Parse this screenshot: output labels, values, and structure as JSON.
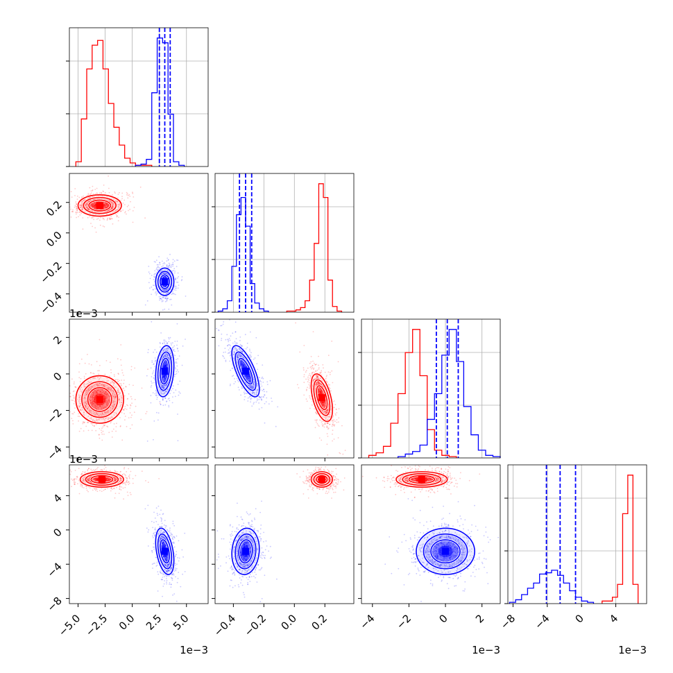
{
  "chart_data": {
    "type": "corner",
    "series": [
      {
        "name": "",
        "color": "#ff0000"
      },
      {
        "name": "",
        "color": "#0000ff"
      }
    ],
    "variables": [
      {
        "range": [
          -5.8,
          7.0
        ],
        "ticks": [
          -5.0,
          -2.5,
          0.0,
          2.5,
          5.0
        ],
        "tick_labels": [
          "−5.0",
          "−2.5",
          "0.0",
          "2.5",
          "5.0"
        ],
        "offset": "1e−3"
      },
      {
        "range": [
          -0.52,
          0.39
        ],
        "ticks": [
          -0.4,
          -0.2,
          0.0,
          0.2
        ],
        "tick_labels": [
          "−0.4",
          "−0.2",
          "0.0",
          "0.2"
        ],
        "offset": ""
      },
      {
        "range": [
          -4.6,
          3.0
        ],
        "ticks": [
          -4,
          -2,
          0,
          2
        ],
        "tick_labels": [
          "−4",
          "−2",
          "0",
          "2"
        ],
        "offset": "1e−3"
      },
      {
        "range": [
          -8.6,
          7.6
        ],
        "ticks": [
          -8,
          -4,
          0,
          4
        ],
        "tick_labels": [
          "−8",
          "−4",
          "0",
          "4"
        ],
        "offset": "1e−3"
      }
    ],
    "marginals": [
      {
        "var": 0,
        "red": {
          "edges": [
            -5.2,
            -4.7,
            -4.2,
            -3.7,
            -3.2,
            -2.7,
            -2.2,
            -1.7,
            -1.2,
            -0.7,
            -0.2,
            0.3,
            0.8,
            1.3,
            1.8
          ],
          "counts": [
            4,
            40,
            82,
            102,
            106,
            82,
            53,
            33,
            18,
            7,
            3,
            1,
            1,
            1
          ]
        },
        "blue": {
          "edges": [
            0.3,
            0.8,
            1.3,
            1.8,
            2.3,
            2.8,
            3.3,
            3.8,
            4.3,
            4.8
          ],
          "counts": [
            1,
            2,
            6,
            62,
            108,
            104,
            44,
            4,
            1
          ]
        },
        "quantile_lines": [
          2.5,
          3.0,
          3.5
        ]
      },
      {
        "var": 1,
        "blue": {
          "edges": [
            -0.5,
            -0.47,
            -0.44,
            -0.41,
            -0.38,
            -0.35,
            -0.32,
            -0.29,
            -0.26,
            -0.23,
            -0.2,
            -0.17
          ],
          "counts": [
            1,
            3,
            10,
            40,
            85,
            100,
            75,
            25,
            8,
            3,
            1
          ]
        },
        "red": {
          "edges": [
            -0.05,
            -0.02,
            0.01,
            0.04,
            0.07,
            0.1,
            0.13,
            0.16,
            0.19,
            0.22,
            0.25,
            0.28,
            0.31
          ],
          "counts": [
            1,
            1,
            2,
            4,
            10,
            28,
            60,
            112,
            100,
            28,
            5,
            1
          ]
        },
        "quantile_lines": [
          -0.36,
          -0.32,
          -0.28
        ]
      },
      {
        "var": 2,
        "red": {
          "edges": [
            -4.2,
            -3.8,
            -3.4,
            -3.0,
            -2.6,
            -2.2,
            -1.8,
            -1.4,
            -1.0,
            -0.6,
            -0.2,
            0.2,
            0.6
          ],
          "counts": [
            2,
            4,
            9,
            27,
            50,
            82,
            100,
            64,
            22,
            6,
            2,
            1
          ]
        },
        "blue": {
          "edges": [
            -2.6,
            -2.2,
            -1.8,
            -1.4,
            -1.0,
            -0.6,
            -0.2,
            0.2,
            0.6,
            1.0,
            1.4,
            1.8,
            2.2,
            2.6,
            3.0
          ],
          "counts": [
            1,
            3,
            5,
            10,
            30,
            50,
            80,
            100,
            75,
            40,
            18,
            6,
            2,
            1
          ]
        },
        "quantile_lines": [
          -0.5,
          0.1,
          0.7
        ]
      },
      {
        "var": 3,
        "blue": {
          "edges": [
            -8.4,
            -7.7,
            -7.0,
            -6.3,
            -5.6,
            -4.9,
            -4.2,
            -3.5,
            -2.8,
            -2.1,
            -1.4,
            -0.7,
            0.0,
            0.7,
            1.4
          ],
          "counts": [
            1,
            3,
            7,
            12,
            16,
            23,
            24,
            26,
            22,
            16,
            10,
            5,
            2,
            1
          ]
        },
        "red": {
          "edges": [
            2.4,
            3.0,
            3.6,
            4.2,
            4.8,
            5.4,
            6.0,
            6.6
          ],
          "counts": [
            2,
            2,
            5,
            15,
            70,
            100,
            15
          ]
        },
        "quantile_lines": [
          -4.1,
          -2.5,
          -0.7
        ]
      }
    ],
    "joints": [
      {
        "xvar": 0,
        "yvar": 1,
        "clusters": [
          {
            "color": "red",
            "mean": [
              -3.0,
              0.18
            ],
            "sd": [
              1.0,
              0.035
            ],
            "rho": 0.0
          },
          {
            "color": "blue",
            "mean": [
              3.0,
              -0.32
            ],
            "sd": [
              0.42,
              0.045
            ],
            "rho": 0.0
          }
        ]
      },
      {
        "xvar": 0,
        "yvar": 2,
        "clusters": [
          {
            "color": "red",
            "mean": [
              -3.0,
              -1.4
            ],
            "sd": [
              1.1,
              0.65
            ],
            "rho": 0.0
          },
          {
            "color": "blue",
            "mean": [
              3.0,
              0.15
            ],
            "sd": [
              0.42,
              0.7
            ],
            "rho": 0.2
          }
        ]
      },
      {
        "xvar": 1,
        "yvar": 2,
        "clusters": [
          {
            "color": "red",
            "mean": [
              0.18,
              -1.3
            ],
            "sd": [
              0.035,
              0.65
            ],
            "rho": -0.5
          },
          {
            "color": "blue",
            "mean": [
              -0.32,
              0.15
            ],
            "sd": [
              0.045,
              0.7
            ],
            "rho": -0.7
          }
        ]
      },
      {
        "xvar": 0,
        "yvar": 3,
        "clusters": [
          {
            "color": "red",
            "mean": [
              -2.8,
              5.9
            ],
            "sd": [
              1.0,
              0.45
            ],
            "rho": 0.0
          },
          {
            "color": "blue",
            "mean": [
              3.0,
              -2.5
            ],
            "sd": [
              0.42,
              1.35
            ],
            "rho": -0.4
          }
        ]
      },
      {
        "xvar": 1,
        "yvar": 3,
        "clusters": [
          {
            "color": "red",
            "mean": [
              0.18,
              5.9
            ],
            "sd": [
              0.035,
              0.45
            ],
            "rho": 0.0
          },
          {
            "color": "blue",
            "mean": [
              -0.32,
              -2.5
            ],
            "sd": [
              0.045,
              1.35
            ],
            "rho": 0.1
          }
        ]
      },
      {
        "xvar": 2,
        "yvar": 3,
        "clusters": [
          {
            "color": "red",
            "mean": [
              -1.3,
              5.9
            ],
            "sd": [
              0.7,
              0.45
            ],
            "rho": 0.0
          },
          {
            "color": "blue",
            "mean": [
              0.0,
              -2.5
            ],
            "sd": [
              0.8,
              1.35
            ],
            "rho": 0.0
          }
        ]
      }
    ],
    "grid": true
  }
}
